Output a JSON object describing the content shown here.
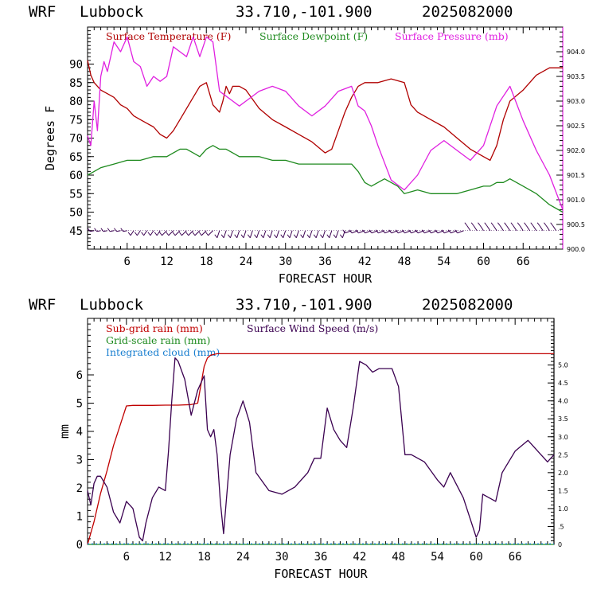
{
  "header1": {
    "model": "WRF",
    "station": "Lubbock",
    "coords": "33.710,-101.900",
    "run": "2025082000"
  },
  "header2": {
    "model": "WRF",
    "station": "Lubbock",
    "coords": "33.710,-101.900",
    "run": "2025082000"
  },
  "colors": {
    "temp": "#b00000",
    "dew": "#1e8a1e",
    "press": "#e020e0",
    "wind_barb": "#3a0050",
    "subgrid": "#c00000",
    "grid": "#1e8a1e",
    "cloud": "#1a7fd0",
    "wspd": "#3a0050"
  },
  "chart_data": [
    {
      "type": "line",
      "legend": [
        "Surface Temperature (F)",
        "Surface Dewpoint (F)",
        "Surface Pressure (mb)"
      ],
      "xlabel": "FORECAST HOUR",
      "ylabel": "Degrees F",
      "xticks": [
        "6",
        "12",
        "18",
        "24",
        "30",
        "36",
        "42",
        "48",
        "54",
        "60",
        "66"
      ],
      "xlim": [
        0,
        72
      ],
      "ylim": [
        40,
        100
      ],
      "yticks": [
        "45",
        "50",
        "55",
        "60",
        "65",
        "70",
        "75",
        "80",
        "85",
        "90"
      ],
      "y2lim": [
        900.0,
        904.5
      ],
      "y2ticks": [
        "900.0",
        "900.5",
        "901.0",
        "901.5",
        "902.0",
        "902.5",
        "903.0",
        "903.5",
        "904.0"
      ],
      "series": [
        {
          "name": "Surface Temperature (F)",
          "color": "#b00000",
          "x": [
            0,
            0.5,
            1,
            2,
            3,
            4,
            5,
            6,
            7,
            8,
            9,
            10,
            11,
            12,
            13,
            14,
            15,
            16,
            17,
            18,
            19,
            20,
            20.5,
            21,
            21.5,
            22,
            23,
            24,
            26,
            28,
            30,
            32,
            34,
            36,
            37,
            38,
            39,
            40,
            41,
            42,
            43,
            44,
            46,
            48,
            49,
            50,
            52,
            54,
            56,
            58,
            60,
            61,
            62,
            63,
            64,
            66,
            68,
            70,
            71,
            72
          ],
          "y": [
            91,
            87,
            85,
            83,
            82,
            81,
            79,
            78,
            76,
            75,
            74,
            73,
            71,
            70,
            72,
            75,
            78,
            81,
            84,
            85,
            79,
            77,
            80,
            84,
            82,
            84,
            84,
            83,
            78,
            75,
            73,
            71,
            69,
            66,
            67,
            72,
            77,
            81,
            84,
            85,
            85,
            85,
            86,
            85,
            79,
            77,
            75,
            73,
            70,
            67,
            65,
            64,
            68,
            75,
            80,
            83,
            87,
            89,
            89,
            89
          ]
        },
        {
          "name": "Surface Dewpoint (F)",
          "color": "#1e8a1e",
          "x": [
            0,
            1,
            2,
            4,
            6,
            8,
            10,
            12,
            13,
            14,
            15,
            16,
            17,
            18,
            19,
            20,
            21,
            22,
            23,
            24,
            26,
            28,
            30,
            32,
            34,
            36,
            38,
            39,
            40,
            41,
            42,
            43,
            44,
            45,
            46,
            47,
            48,
            50,
            52,
            54,
            56,
            58,
            60,
            61,
            62,
            63,
            64,
            66,
            68,
            70,
            72
          ],
          "y": [
            60,
            61,
            62,
            63,
            64,
            64,
            65,
            65,
            66,
            67,
            67,
            66,
            65,
            67,
            68,
            67,
            67,
            66,
            65,
            65,
            65,
            64,
            64,
            63,
            63,
            63,
            63,
            63,
            63,
            61,
            58,
            57,
            58,
            59,
            58,
            57,
            55,
            56,
            55,
            55,
            55,
            56,
            57,
            57,
            58,
            58,
            59,
            57,
            55,
            52,
            50
          ]
        },
        {
          "name": "Surface Pressure (mb)",
          "color": "#e020e0",
          "x": [
            0,
            0.5,
            1,
            1.5,
            2,
            2.5,
            3,
            4,
            5,
            6,
            7,
            8,
            9,
            10,
            11,
            12,
            13,
            14,
            15,
            16,
            17,
            18,
            19,
            20,
            21,
            22,
            23,
            24,
            26,
            28,
            30,
            32,
            34,
            36,
            38,
            40,
            41,
            42,
            43,
            44,
            46,
            48,
            50,
            52,
            54,
            56,
            58,
            60,
            62,
            63,
            64,
            66,
            68,
            70,
            72
          ],
          "y": [
            902.3,
            902.1,
            903.0,
            902.4,
            903.5,
            903.8,
            903.6,
            904.2,
            904.0,
            904.3,
            903.8,
            903.7,
            903.3,
            903.5,
            903.4,
            903.5,
            904.1,
            904.0,
            903.9,
            904.3,
            903.9,
            904.3,
            904.2,
            903.2,
            903.1,
            903.0,
            902.9,
            903.0,
            903.2,
            903.3,
            903.2,
            902.9,
            902.7,
            902.9,
            903.2,
            903.3,
            902.9,
            902.8,
            902.5,
            902.1,
            901.4,
            901.2,
            901.5,
            902.0,
            902.2,
            902.0,
            901.8,
            902.1,
            902.9,
            903.1,
            903.3,
            902.6,
            902.0,
            901.5,
            900.8
          ]
        }
      ]
    },
    {
      "type": "line",
      "legend": [
        "Sub-grid rain (mm)",
        "Grid-scale rain (mm)",
        "Integrated cloud (mm)",
        "Surface Wind Speed (m/s)"
      ],
      "xlabel": "FORECAST HOUR",
      "ylabel": "mm",
      "xticks": [
        "6",
        "12",
        "18",
        "24",
        "30",
        "36",
        "42",
        "48",
        "54",
        "60",
        "66"
      ],
      "xlim": [
        0,
        72
      ],
      "ylim": [
        0,
        8
      ],
      "yticks": [
        "0",
        "1",
        "2",
        "3",
        "4",
        "5",
        "6"
      ],
      "y2lim": [
        0,
        6.3
      ],
      "y2ticks": [
        "0",
        ".5",
        "1.0",
        "1.5",
        "2.0",
        "2.5",
        "3.0",
        "3.5",
        "4.0",
        "4.5",
        "5.0"
      ],
      "series": [
        {
          "name": "Sub-grid rain (mm)",
          "color": "#c00000",
          "x": [
            0,
            1,
            2,
            3,
            4,
            5,
            6,
            7,
            8,
            10,
            12,
            14,
            16,
            17,
            18,
            18.5,
            19,
            20,
            22,
            24,
            30,
            40,
            50,
            60,
            72
          ],
          "y": [
            0,
            0.8,
            1.8,
            2.6,
            3.5,
            4.2,
            4.9,
            4.92,
            4.92,
            4.92,
            4.93,
            4.93,
            4.95,
            5.0,
            6.3,
            6.6,
            6.7,
            6.75,
            6.75,
            6.75,
            6.75,
            6.75,
            6.75,
            6.75,
            6.75
          ]
        },
        {
          "name": "Grid-scale rain (mm)",
          "color": "#1e8a1e",
          "x": [
            0,
            72
          ],
          "y": [
            0,
            0
          ]
        },
        {
          "name": "Integrated cloud (mm)",
          "color": "#1a7fd0",
          "x": [
            0,
            72
          ],
          "y": [
            0.02,
            0.02
          ]
        },
        {
          "name": "Surface Wind Speed (m/s)",
          "color": "#3a0050",
          "x": [
            0,
            0.5,
            1,
            1.5,
            2,
            3,
            4,
            5,
            6,
            7,
            8,
            8.5,
            9,
            10,
            11,
            12,
            12.5,
            13,
            13.5,
            14,
            15,
            16,
            17,
            18,
            18.5,
            19,
            19.5,
            20,
            20.5,
            21,
            22,
            23,
            24,
            25,
            26,
            28,
            30,
            32,
            34,
            35,
            36,
            37,
            38,
            39,
            40,
            41,
            42,
            43,
            44,
            45,
            46,
            47,
            48,
            49,
            50,
            52,
            54,
            55,
            56,
            58,
            60,
            60.5,
            61,
            62,
            63,
            64,
            66,
            68,
            70,
            71,
            72
          ],
          "y": [
            1.5,
            1.1,
            1.7,
            1.9,
            1.9,
            1.6,
            0.9,
            0.6,
            1.2,
            1.0,
            0.2,
            0.1,
            0.6,
            1.3,
            1.6,
            1.5,
            2.6,
            4.0,
            5.2,
            5.1,
            4.6,
            3.6,
            4.3,
            4.7,
            3.2,
            3.0,
            3.2,
            2.5,
            1.2,
            0.3,
            2.5,
            3.5,
            4.0,
            3.4,
            2.0,
            1.5,
            1.4,
            1.6,
            2.0,
            2.4,
            2.4,
            3.8,
            3.2,
            2.9,
            2.7,
            3.8,
            5.1,
            5.0,
            4.8,
            4.9,
            4.9,
            4.9,
            4.4,
            2.5,
            2.5,
            2.3,
            1.8,
            1.6,
            2.0,
            1.3,
            0.2,
            0.4,
            1.4,
            1.3,
            1.2,
            2.0,
            2.6,
            2.9,
            2.5,
            2.3,
            2.5
          ]
        }
      ]
    }
  ]
}
